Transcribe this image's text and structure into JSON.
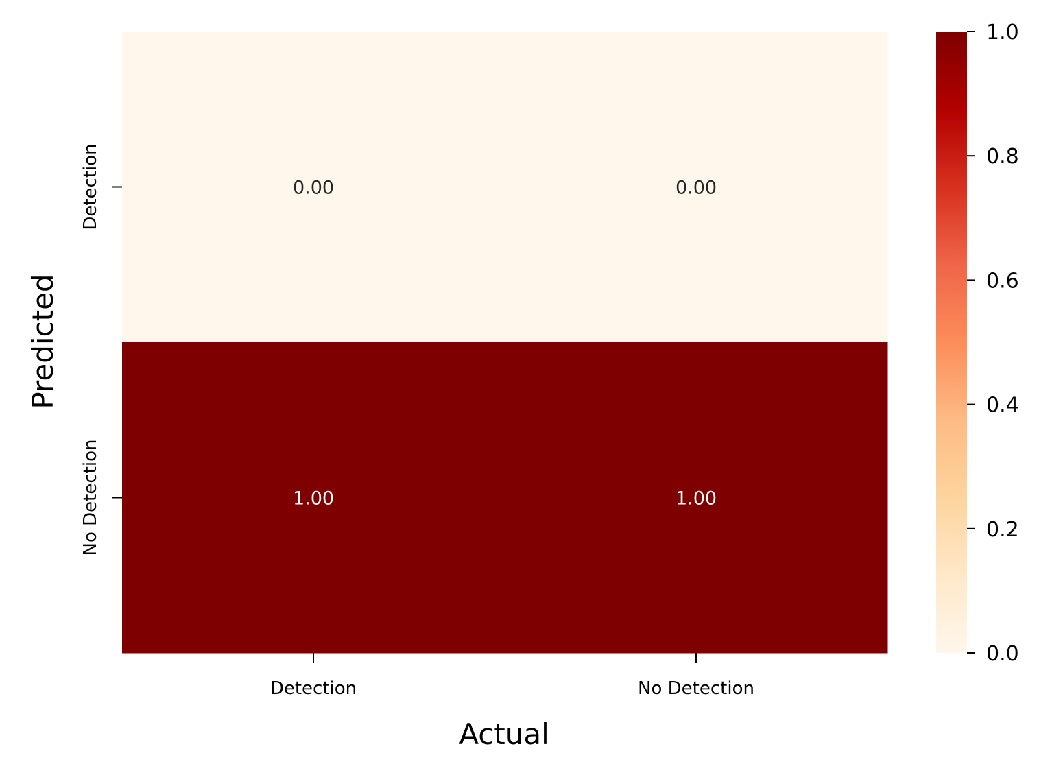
{
  "chart_data": {
    "type": "heatmap",
    "xlabel": "Actual",
    "ylabel": "Predicted",
    "x_categories": [
      "Detection",
      "No Detection"
    ],
    "y_categories": [
      "Detection",
      "No Detection"
    ],
    "values": [
      [
        0.0,
        0.0
      ],
      [
        1.0,
        1.0
      ]
    ],
    "cell_labels": [
      [
        "0.00",
        "0.00"
      ],
      [
        "1.00",
        "1.00"
      ]
    ],
    "colormap": "OrRd",
    "colorbar": {
      "range": [
        0.0,
        1.0
      ],
      "ticks": [
        0.0,
        0.2,
        0.4,
        0.6,
        0.8,
        1.0
      ],
      "tick_labels": [
        "0.0",
        "0.2",
        "0.4",
        "0.6",
        "0.8",
        "1.0"
      ]
    },
    "annotation_colors": {
      "light_cell": "#262626",
      "dark_cell": "#ffffff"
    },
    "grid": false
  }
}
